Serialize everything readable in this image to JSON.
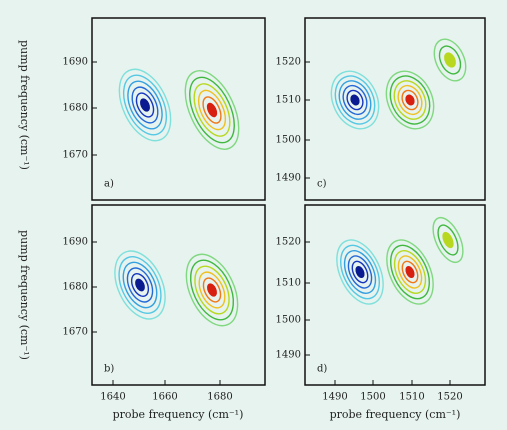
{
  "figure": {
    "y_label_top": "pump frequency (cm⁻¹)",
    "y_label_bottom": "pump frequency (cm⁻¹)",
    "x_label_left": "probe frequency (cm⁻¹)",
    "x_label_right": "probe frequency (cm⁻¹)",
    "panels": [
      {
        "label": "a)",
        "xticks": [],
        "yticks": [
          1690,
          1680,
          1670
        ]
      },
      {
        "label": "b)",
        "xticks": [
          1640,
          1660,
          1680
        ],
        "yticks": [
          1690,
          1680,
          1670
        ]
      },
      {
        "label": "c)",
        "xticks": [],
        "yticks": [
          1520,
          1510,
          1500,
          1490
        ]
      },
      {
        "label": "d)",
        "xticks": [
          1490,
          1500,
          1510,
          1520
        ],
        "yticks": [
          1520,
          1510,
          1500,
          1490
        ]
      }
    ]
  }
}
